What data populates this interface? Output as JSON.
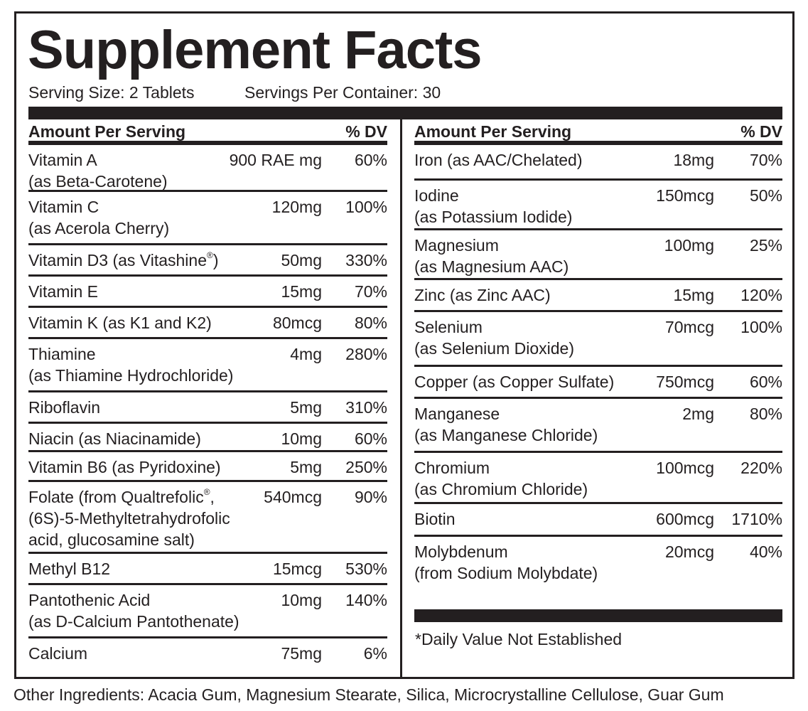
{
  "title": "Supplement Facts",
  "serving_size": "Serving Size: 2 Tablets",
  "servings_per_container": "Servings Per Container: 30",
  "header": {
    "amount_label": "Amount Per Serving",
    "dv_label": "% DV"
  },
  "left_rows": [
    {
      "name": "Vitamin A",
      "name2": "(as Beta-Carotene)",
      "amount": "900 RAE mg",
      "dv": "60%"
    },
    {
      "name": "Vitamin C",
      "name2": "(as Acerola Cherry)",
      "amount": "120mg",
      "dv": "100%"
    },
    {
      "name": "Vitamin D3 (as Vitashine",
      "mark": "®",
      "name_end": ")",
      "amount": "50mg",
      "dv": "330%"
    },
    {
      "name": "Vitamin E",
      "amount": "15mg",
      "dv": "70%"
    },
    {
      "name": "Vitamin K (as K1 and K2)",
      "amount": "80mcg",
      "dv": "80%"
    },
    {
      "name": "Thiamine",
      "name2": "(as Thiamine Hydrochloride)",
      "amount": "4mg",
      "dv": "280%"
    },
    {
      "name": "Riboflavin",
      "amount": "5mg",
      "dv": "310%"
    },
    {
      "name": "Niacin (as Niacinamide)",
      "amount": "10mg",
      "dv": "60%"
    },
    {
      "name": "Vitamin B6 (as Pyridoxine)",
      "amount": "5mg",
      "dv": "250%"
    },
    {
      "name": "Folate (from Qualtrefolic",
      "mark": "®",
      "name_end": ",",
      "name2": "(6S)-5-Methyltetrahydrofolic",
      "name3": "acid, glucosamine salt)",
      "amount": "540mcg",
      "dv": "90%"
    },
    {
      "name": "Methyl B12",
      "amount": "15mcg",
      "dv": "530%"
    },
    {
      "name": "Pantothenic Acid",
      "name2": "(as D-Calcium Pantothenate)",
      "amount": "10mg",
      "dv": "140%"
    },
    {
      "name": "Calcium",
      "amount": "75mg",
      "dv": "6%"
    }
  ],
  "right_rows": [
    {
      "name": "Iron (as AAC/Chelated)",
      "amount": "18mg",
      "dv": "70%"
    },
    {
      "name": "Iodine",
      "name2": "(as Potassium Iodide)",
      "amount": "150mcg",
      "dv": "50%"
    },
    {
      "name": "Magnesium",
      "name2": "(as Magnesium AAC)",
      "amount": "100mg",
      "dv": "25%"
    },
    {
      "name": "Zinc (as Zinc AAC)",
      "amount": "15mg",
      "dv": "120%"
    },
    {
      "name": "Selenium",
      "name2": "(as Selenium Dioxide)",
      "amount": "70mcg",
      "dv": "100%"
    },
    {
      "name": "Copper (as Copper Sulfate)",
      "amount": "750mcg",
      "dv": "60%"
    },
    {
      "name": "Manganese",
      "name2": "(as Manganese Chloride)",
      "amount": "2mg",
      "dv": "80%"
    },
    {
      "name": "Chromium",
      "name2": "(as Chromium Chloride)",
      "amount": "100mcg",
      "dv": "220%"
    },
    {
      "name": "Biotin",
      "amount": "600mcg",
      "dv": "1710%"
    },
    {
      "name": "Molybdenum",
      "name2": "(from Sodium Molybdate)",
      "amount": "20mcg",
      "dv": "40%"
    }
  ],
  "footnote": "*Daily Value Not Established",
  "other_ingredients": "Other Ingredients: Acacia Gum, Magnesium Stearate, Silica, Microcrystalline Cellulose, Guar Gum"
}
